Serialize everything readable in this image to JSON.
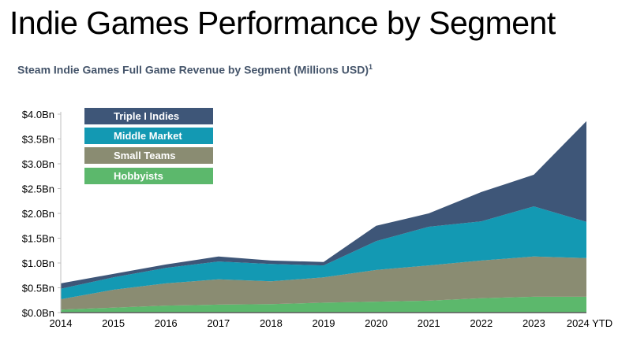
{
  "title": "Indie Games Performance by Segment",
  "chart_data": {
    "type": "area",
    "stacked": true,
    "title": "Steam Indie Games Full Game Revenue by Segment (Millions USD)",
    "title_footnote": "1",
    "xlabel": "",
    "ylabel": "",
    "categories": [
      "2014",
      "2015",
      "2016",
      "2017",
      "2018",
      "2019",
      "2020",
      "2021",
      "2022",
      "2023",
      "2024 YTD"
    ],
    "ylim": [
      0,
      4.0
    ],
    "yticks": [
      "$0.0Bn",
      "$0.5Bn",
      "$1.0Bn",
      "$1.5Bn",
      "$2.0Bn",
      "$2.5Bn",
      "$3.0Bn",
      "$3.5Bn",
      "$4.0Bn"
    ],
    "legend_position": "top-left",
    "series": [
      {
        "name": "Hobbyists",
        "color": "#5cb86c",
        "values": [
          0.06,
          0.1,
          0.14,
          0.16,
          0.17,
          0.2,
          0.22,
          0.24,
          0.29,
          0.32,
          0.32
        ]
      },
      {
        "name": "Small Teams",
        "color": "#8a8c72",
        "values": [
          0.21,
          0.36,
          0.45,
          0.51,
          0.46,
          0.51,
          0.64,
          0.71,
          0.76,
          0.81,
          0.78
        ]
      },
      {
        "name": "Middle Market",
        "color": "#1399b3",
        "values": [
          0.21,
          0.25,
          0.31,
          0.36,
          0.35,
          0.24,
          0.58,
          0.78,
          0.79,
          1.01,
          0.73
        ]
      },
      {
        "name": "Triple I Indies",
        "color": "#3e5678",
        "values": [
          0.11,
          0.07,
          0.07,
          0.1,
          0.07,
          0.07,
          0.31,
          0.27,
          0.59,
          0.64,
          2.03
        ]
      }
    ]
  }
}
